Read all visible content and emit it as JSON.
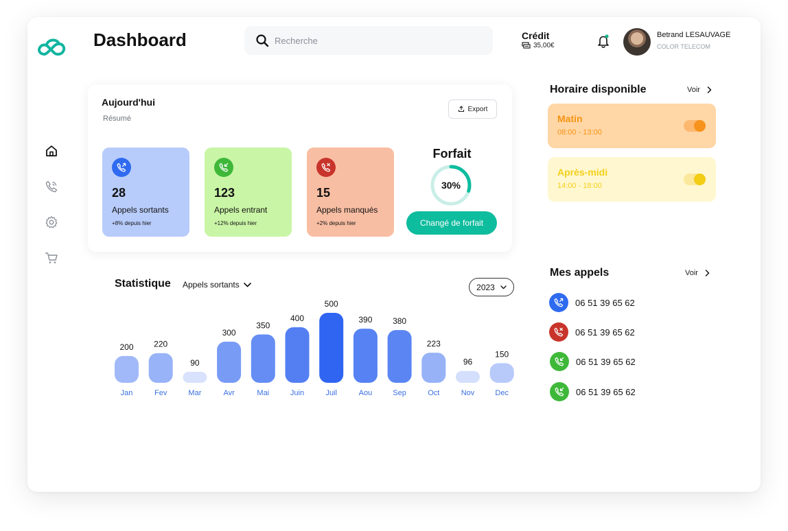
{
  "header": {
    "title": "Dashboard",
    "search_placeholder": "Recherche",
    "credit_label": "Crédit",
    "credit_value": "35,00€",
    "user_name": "Betrand LESAUVAGE",
    "user_company": "COLOR TELECOM"
  },
  "colors": {
    "accent": "#0ebc9e",
    "blue": "#2f6bf0",
    "green": "#3fb83a",
    "red": "#c8342b"
  },
  "sidebar": {
    "items": [
      {
        "icon": "home-icon"
      },
      {
        "icon": "phone-icon"
      },
      {
        "icon": "gear-icon"
      },
      {
        "icon": "cart-icon"
      }
    ]
  },
  "today": {
    "title": "Aujourd'hui",
    "subtitle": "Résumé",
    "export_label": "Export",
    "stats": [
      {
        "icon": "outgoing-call-icon",
        "value": "28",
        "label": "Appels sortants",
        "change": "+8% depuis hier"
      },
      {
        "icon": "incoming-call-icon",
        "value": "123",
        "label": "Appels entrant",
        "change": "+12% depuis hier"
      },
      {
        "icon": "missed-call-icon",
        "value": "15",
        "label": "Appels manqués",
        "change": "+2% depuis hier"
      }
    ],
    "forfait": {
      "title": "Forfait",
      "percent_label": "30%",
      "percent": 0.3,
      "button_label": "Changé de forfait"
    }
  },
  "schedule": {
    "title": "Horaire disponible",
    "voir_label": "Voir",
    "slots": [
      {
        "name": "Matin",
        "time": "08:00 - 13:00",
        "on": true
      },
      {
        "name": "Après-midi",
        "time": "14:00 - 18:00",
        "on": true
      }
    ]
  },
  "calls": {
    "title": "Mes appels",
    "voir_label": "Voir",
    "items": [
      {
        "type": "outgoing",
        "number": "06 51 39 65 62"
      },
      {
        "type": "missed",
        "number": "06 51 39 65 62"
      },
      {
        "type": "incoming",
        "number": "06 51 39 65 62"
      },
      {
        "type": "incoming",
        "number": "06 51 39 65 62"
      }
    ]
  },
  "statistics": {
    "title": "Statistique",
    "filter_label": "Appels sortants",
    "year": "2023"
  },
  "chart_data": {
    "type": "bar",
    "categories": [
      "Jan",
      "Fev",
      "Mar",
      "Avr",
      "Mai",
      "Juin",
      "Juil",
      "Aou",
      "Sep",
      "Oct",
      "Nov",
      "Dec"
    ],
    "values": [
      200,
      220,
      90,
      300,
      350,
      400,
      500,
      390,
      380,
      223,
      96,
      150
    ],
    "data_labels": [
      "200",
      "220",
      "90",
      "300",
      "350",
      "400",
      "500",
      "390",
      "380",
      "223",
      "96",
      "150"
    ],
    "title": "",
    "xlabel": "",
    "ylabel": "",
    "ylim": [
      0,
      500
    ],
    "grid": false
  }
}
